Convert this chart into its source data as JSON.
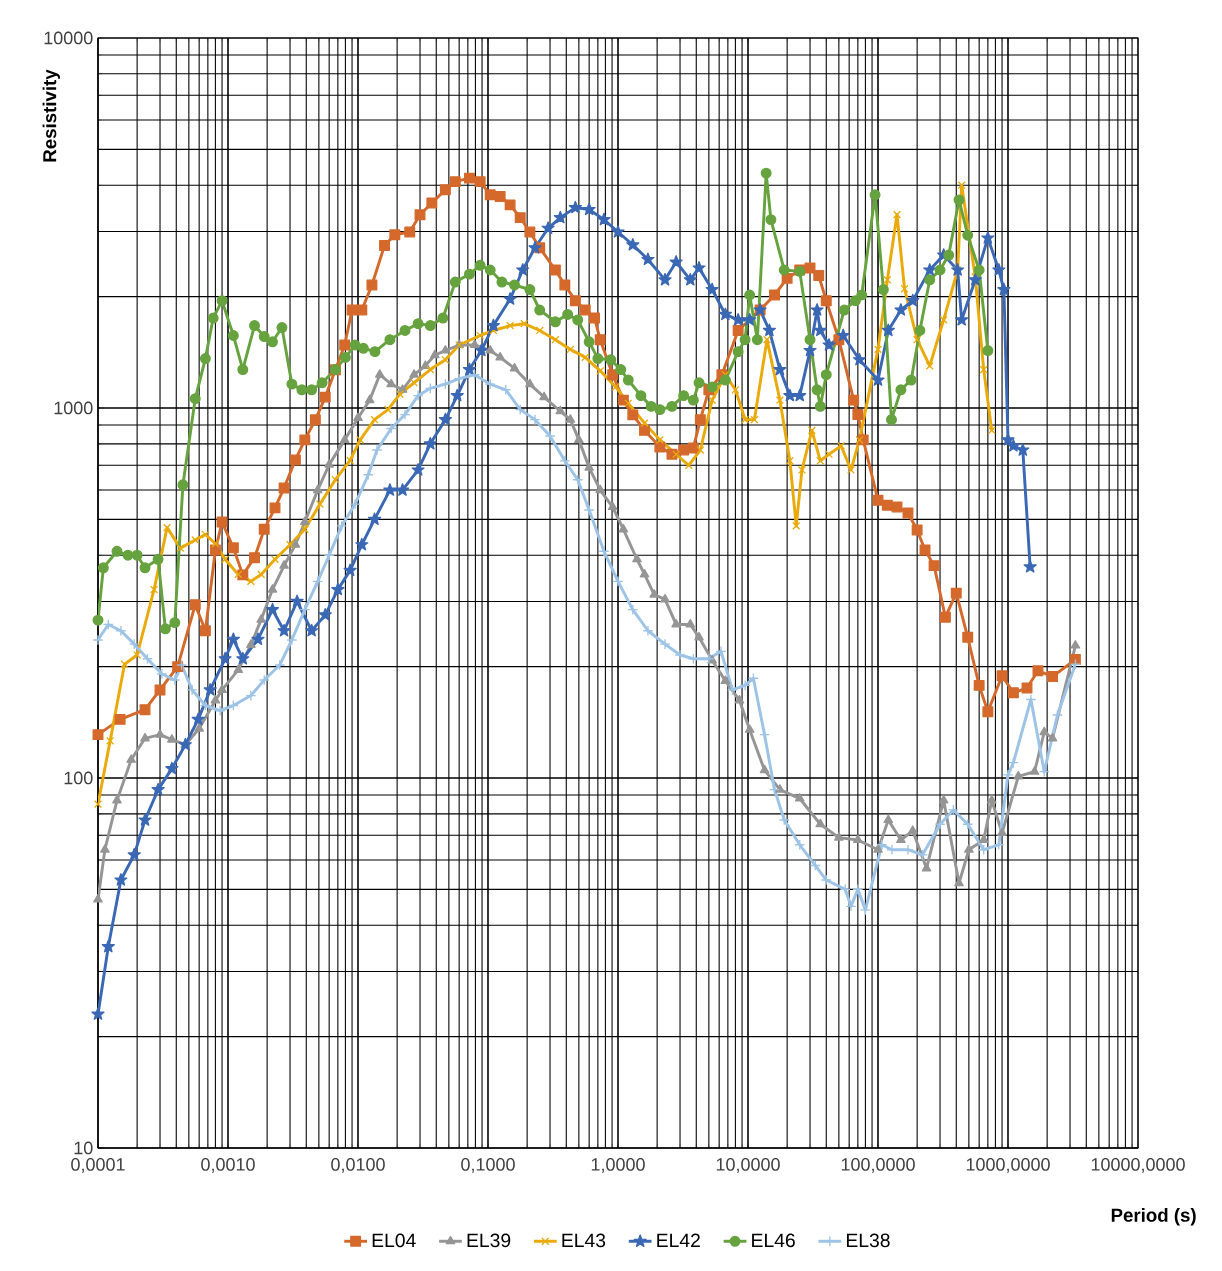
{
  "chart_data": {
    "type": "line",
    "xlabel": "Period (s)",
    "ylabel": "Resistivity",
    "log": "xy",
    "grid": true,
    "legend": "bottom",
    "xlim": [
      0.0001,
      10000
    ],
    "ylim": [
      10,
      10000
    ],
    "xticks": [
      {
        "value": 0.0001,
        "label": "0,0001"
      },
      {
        "value": 0.001,
        "label": "0,0010"
      },
      {
        "value": 0.01,
        "label": "0,0100"
      },
      {
        "value": 0.1,
        "label": "0,1000"
      },
      {
        "value": 1,
        "label": "1,0000"
      },
      {
        "value": 10,
        "label": "10,0000"
      },
      {
        "value": 100,
        "label": "100,0000"
      },
      {
        "value": 1000,
        "label": "1000,0000"
      },
      {
        "value": 10000,
        "label": "10000,0000"
      }
    ],
    "yticks": [
      10,
      100,
      1000,
      10000
    ],
    "series": [
      {
        "name": "EL04",
        "color": "#d4692b",
        "marker": "square",
        "x": [
          0.0001,
          0.000148,
          0.00023,
          0.0003,
          0.00041,
          0.00056,
          0.00067,
          0.0008,
          0.0009,
          0.0011,
          0.0013,
          0.0016,
          0.0019,
          0.0023,
          0.0027,
          0.0033,
          0.0039,
          0.0047,
          0.0056,
          0.0067,
          0.0079,
          0.009,
          0.0107,
          0.0128,
          0.016,
          0.0192,
          0.025,
          0.03,
          0.037,
          0.047,
          0.056,
          0.072,
          0.087,
          0.104,
          0.124,
          0.148,
          0.177,
          0.21,
          0.25,
          0.33,
          0.39,
          0.47,
          0.56,
          0.66,
          0.73,
          0.91,
          1.1,
          1.3,
          1.6,
          2.1,
          2.6,
          3.2,
          3.8,
          4.3,
          5.0,
          6.3,
          8.4,
          12.4,
          16,
          20,
          25,
          30,
          35,
          40,
          50,
          65,
          70,
          77,
          100,
          118,
          140,
          170,
          200,
          230,
          270,
          330,
          400,
          490,
          600,
          700,
          900,
          1100,
          1400,
          1700,
          2200,
          3300
        ],
        "values": [
          131,
          144,
          153,
          173,
          200,
          294,
          250,
          413,
          492,
          419,
          354,
          394,
          470,
          537,
          608,
          724,
          820,
          929,
          1070,
          1268,
          1480,
          1840,
          1840,
          2150,
          2750,
          2940,
          2990,
          3330,
          3580,
          3890,
          4090,
          4180,
          4090,
          3770,
          3730,
          3540,
          3270,
          2990,
          2710,
          2360,
          2150,
          1950,
          1840,
          1750,
          1530,
          1230,
          1050,
          958,
          870,
          785,
          750,
          770,
          780,
          930,
          1120,
          1230,
          1620,
          1840,
          2020,
          2240,
          2360,
          2390,
          2280,
          1950,
          1530,
          1050,
          960,
          820,
          563,
          546,
          540,
          520,
          468,
          413,
          375,
          272,
          316,
          240,
          178,
          151,
          189,
          170,
          175,
          195,
          188,
          209
        ]
      },
      {
        "name": "EL39",
        "color": "#959595",
        "marker": "triangle",
        "x": [
          0.0001,
          0.000113,
          0.00014,
          0.00018,
          0.00023,
          0.0003,
          0.00037,
          0.00047,
          0.0006,
          0.0008,
          0.0009,
          0.0012,
          0.0015,
          0.0018,
          0.0022,
          0.0027,
          0.0033,
          0.0039,
          0.0049,
          0.006,
          0.0079,
          0.01,
          0.0123,
          0.0147,
          0.018,
          0.022,
          0.027,
          0.033,
          0.039,
          0.047,
          0.06,
          0.079,
          0.104,
          0.124,
          0.16,
          0.21,
          0.27,
          0.36,
          0.43,
          0.5,
          0.6,
          0.73,
          0.91,
          1.1,
          1.4,
          1.6,
          1.9,
          2.3,
          2.8,
          3.6,
          4.2,
          5.3,
          6.7,
          8.6,
          10.3,
          13.4,
          17.6,
          25,
          36,
          50,
          70,
          100,
          120,
          150,
          185,
          236,
          320,
          420,
          500,
          650,
          750,
          900,
          1200,
          1600,
          1900,
          2200,
          3300
        ],
        "values": [
          47,
          64,
          87,
          112,
          128,
          131,
          127,
          123,
          136,
          162,
          173,
          196,
          229,
          268,
          323,
          375,
          427,
          492,
          600,
          703,
          820,
          940,
          1050,
          1230,
          1160,
          1120,
          1230,
          1300,
          1390,
          1430,
          1480,
          1480,
          1430,
          1370,
          1280,
          1160,
          1070,
          980,
          930,
          820,
          690,
          600,
          540,
          470,
          390,
          355,
          313,
          304,
          260,
          260,
          240,
          208,
          183,
          162,
          135,
          105,
          93,
          88,
          75,
          69,
          68,
          64,
          77,
          68,
          72,
          57,
          87,
          52,
          64,
          68,
          87,
          71,
          101,
          104,
          133,
          128,
          228
        ]
      },
      {
        "name": "EL43",
        "color": "#e9aa0a",
        "marker": "cross",
        "x": [
          0.0001,
          0.000124,
          0.00016,
          0.0002,
          0.00027,
          0.00034,
          0.00043,
          0.00056,
          0.00067,
          0.0008,
          0.00095,
          0.0012,
          0.0015,
          0.0018,
          0.0023,
          0.003,
          0.0039,
          0.0051,
          0.0067,
          0.0087,
          0.0104,
          0.0134,
          0.017,
          0.021,
          0.027,
          0.036,
          0.047,
          0.06,
          0.087,
          0.11,
          0.148,
          0.19,
          0.25,
          0.33,
          0.43,
          0.56,
          0.73,
          0.96,
          1.2,
          1.6,
          2.1,
          2.8,
          3.5,
          4.3,
          5.3,
          6.7,
          8,
          9.5,
          11.2,
          14,
          17.6,
          21,
          23.5,
          26,
          31,
          36,
          42,
          52,
          62,
          72,
          100,
          118,
          140,
          160,
          200,
          250,
          320,
          410,
          440,
          560,
          650,
          750
        ],
        "values": [
          85,
          126,
          203,
          215,
          323,
          475,
          418,
          440,
          455,
          430,
          390,
          355,
          340,
          355,
          390,
          427,
          470,
          550,
          640,
          722,
          820,
          930,
          990,
          1090,
          1170,
          1270,
          1350,
          1480,
          1570,
          1620,
          1670,
          1690,
          1620,
          1530,
          1440,
          1370,
          1260,
          1140,
          1030,
          910,
          820,
          750,
          700,
          770,
          1050,
          1230,
          1120,
          930,
          930,
          1530,
          1050,
          720,
          480,
          680,
          870,
          720,
          750,
          790,
          680,
          820,
          1440,
          2220,
          3330,
          2100,
          1530,
          1300,
          1730,
          2360,
          4000,
          2260,
          1270,
          870
        ]
      },
      {
        "name": "EL42",
        "color": "#3a68b5",
        "marker": "star",
        "x": [
          0.0001,
          0.00012,
          0.00015,
          0.00019,
          0.00023,
          0.00029,
          0.00037,
          0.00047,
          0.00059,
          0.00073,
          0.00095,
          0.0011,
          0.0013,
          0.0017,
          0.0022,
          0.0027,
          0.0034,
          0.0044,
          0.0056,
          0.007,
          0.0087,
          0.0107,
          0.0134,
          0.0176,
          0.022,
          0.029,
          0.036,
          0.047,
          0.058,
          0.072,
          0.089,
          0.11,
          0.148,
          0.185,
          0.23,
          0.29,
          0.36,
          0.47,
          0.6,
          0.78,
          1.0,
          1.3,
          1.7,
          2.3,
          2.8,
          3.6,
          4.2,
          5.3,
          6.7,
          8.4,
          10.3,
          12.4,
          14.6,
          17.6,
          21,
          25,
          30,
          34,
          36,
          42,
          54,
          72,
          100,
          120,
          150,
          185,
          250,
          320,
          410,
          440,
          560,
          700,
          850,
          930,
          1000,
          1100,
          1300,
          1480
        ],
        "values": [
          23,
          35,
          53,
          62,
          77,
          93,
          106,
          123,
          144,
          173,
          210,
          237,
          210,
          237,
          285,
          250,
          300,
          250,
          276,
          323,
          364,
          427,
          500,
          600,
          600,
          680,
          800,
          930,
          1080,
          1270,
          1430,
          1670,
          1970,
          2360,
          2710,
          3060,
          3270,
          3480,
          3440,
          3230,
          2990,
          2760,
          2520,
          2220,
          2480,
          2220,
          2390,
          2090,
          1790,
          1730,
          1730,
          1840,
          1620,
          1270,
          1080,
          1080,
          1430,
          1840,
          1620,
          1480,
          1570,
          1350,
          1190,
          1620,
          1840,
          1950,
          2360,
          2590,
          2360,
          1730,
          2220,
          2880,
          2360,
          2090,
          820,
          790,
          770,
          372
        ]
      },
      {
        "name": "EL46",
        "color": "#66a33f",
        "marker": "circle",
        "x": [
          0.0001,
          0.00011,
          0.00014,
          0.00017,
          0.0002,
          0.00023,
          0.00029,
          0.00033,
          0.00039,
          0.00045,
          0.00056,
          0.00067,
          0.00077,
          0.0009,
          0.0011,
          0.0013,
          0.0016,
          0.0019,
          0.0022,
          0.0026,
          0.0031,
          0.0037,
          0.0044,
          0.0053,
          0.0067,
          0.008,
          0.0095,
          0.011,
          0.0135,
          0.0176,
          0.023,
          0.029,
          0.036,
          0.045,
          0.056,
          0.072,
          0.087,
          0.104,
          0.128,
          0.16,
          0.21,
          0.25,
          0.33,
          0.41,
          0.49,
          0.6,
          0.7,
          0.88,
          1.05,
          1.2,
          1.5,
          1.8,
          2.1,
          2.6,
          3.2,
          3.8,
          4.2,
          5.3,
          6.7,
          8.4,
          9.5,
          10.3,
          11.8,
          13.8,
          15,
          19,
          25,
          30,
          34,
          36,
          40,
          55,
          67,
          75,
          95,
          110,
          127,
          150,
          180,
          210,
          250,
          300,
          350,
          420,
          490,
          600,
          700
        ],
        "values": [
          267,
          370,
          410,
          400,
          400,
          370,
          390,
          253,
          263,
          620,
          1060,
          1360,
          1750,
          1950,
          1570,
          1270,
          1670,
          1560,
          1510,
          1650,
          1160,
          1120,
          1120,
          1170,
          1270,
          1370,
          1480,
          1450,
          1420,
          1530,
          1620,
          1690,
          1670,
          1750,
          2190,
          2300,
          2430,
          2360,
          2190,
          2150,
          2090,
          1840,
          1710,
          1790,
          1730,
          1510,
          1360,
          1350,
          1270,
          1190,
          1080,
          1010,
          990,
          1010,
          1080,
          1050,
          1170,
          1140,
          1190,
          1420,
          1530,
          2020,
          1530,
          4310,
          3230,
          2360,
          2340,
          1530,
          1120,
          1010,
          1230,
          1840,
          1950,
          2020,
          3770,
          2090,
          930,
          1120,
          1190,
          1620,
          2220,
          2360,
          2590,
          3650,
          2930,
          2360,
          1430
        ]
      },
      {
        "name": "EL38",
        "color": "#9dc3e6",
        "marker": "plus",
        "x": [
          0.0001,
          0.00012,
          0.00015,
          0.00019,
          0.00024,
          0.00031,
          0.00039,
          0.00044,
          0.00053,
          0.00067,
          0.00087,
          0.0011,
          0.0015,
          0.0019,
          0.0025,
          0.0031,
          0.0039,
          0.0049,
          0.006,
          0.0075,
          0.0095,
          0.012,
          0.014,
          0.018,
          0.023,
          0.029,
          0.036,
          0.047,
          0.06,
          0.079,
          0.104,
          0.137,
          0.177,
          0.23,
          0.3,
          0.39,
          0.49,
          0.6,
          0.78,
          1.0,
          1.3,
          1.7,
          2.3,
          3.0,
          3.8,
          5.0,
          6.2,
          7.6,
          9.5,
          11,
          13.4,
          16,
          19,
          25,
          33,
          40,
          56,
          62,
          70,
          80,
          107,
          128,
          170,
          220,
          300,
          380,
          490,
          650,
          850,
          1000,
          1100,
          1500,
          1900,
          2400,
          3300
        ],
        "values": [
          236,
          260,
          250,
          230,
          210,
          191,
          184,
          202,
          173,
          157,
          152,
          157,
          167,
          184,
          202,
          236,
          285,
          340,
          400,
          480,
          550,
          660,
          770,
          880,
          960,
          1080,
          1130,
          1160,
          1200,
          1230,
          1160,
          1120,
          990,
          930,
          840,
          720,
          640,
          530,
          410,
          340,
          285,
          250,
          230,
          215,
          210,
          210,
          220,
          173,
          178,
          186,
          131,
          93,
          77,
          66,
          58,
          53,
          50,
          45,
          50,
          44,
          66,
          64,
          64,
          62,
          75,
          82,
          75,
          64,
          66,
          102,
          110,
          163,
          104,
          148,
          203
        ]
      }
    ]
  }
}
